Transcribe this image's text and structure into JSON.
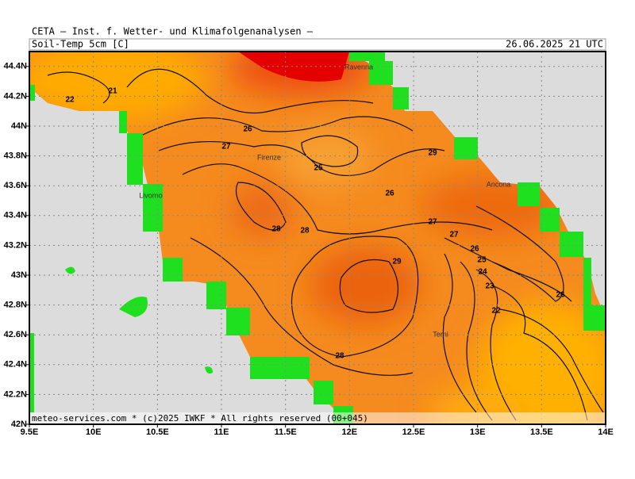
{
  "header": {
    "institute": "CETA — Inst. f. Wetter- und Klimafolgenanalysen —",
    "field": "Soil-Temp 5cm [C]",
    "valid": "26.06.2025 21 UTC"
  },
  "map": {
    "xlim": [
      9.5,
      14
    ],
    "ylim": [
      42,
      44.5
    ],
    "xticks": [
      {
        "value": 9.5,
        "label": "9.5E"
      },
      {
        "value": 10,
        "label": "10E"
      },
      {
        "value": 10.5,
        "label": "10.5E"
      },
      {
        "value": 11,
        "label": "11E"
      },
      {
        "value": 11.5,
        "label": "11.5E"
      },
      {
        "value": 12,
        "label": "12E"
      },
      {
        "value": 12.5,
        "label": "12.5E"
      },
      {
        "value": 13,
        "label": "13E"
      },
      {
        "value": 13.5,
        "label": "13.5E"
      },
      {
        "value": 14,
        "label": "14E"
      }
    ],
    "yticks": [
      {
        "value": 42,
        "label": "42N"
      },
      {
        "value": 42.2,
        "label": "42.2N"
      },
      {
        "value": 42.4,
        "label": "42.4N"
      },
      {
        "value": 42.6,
        "label": "42.6N"
      },
      {
        "value": 42.8,
        "label": "42.8N"
      },
      {
        "value": 43,
        "label": "43N"
      },
      {
        "value": 43.2,
        "label": "43.2N"
      },
      {
        "value": 43.4,
        "label": "43.4N"
      },
      {
        "value": 43.6,
        "label": "43.6N"
      },
      {
        "value": 43.8,
        "label": "43.8N"
      },
      {
        "value": 44,
        "label": "44N"
      },
      {
        "value": 44.2,
        "label": "44.2N"
      },
      {
        "value": 44.4,
        "label": "44.4N"
      }
    ],
    "grid": true,
    "contour_labels": [
      22,
      21,
      26,
      27,
      25,
      26,
      29,
      28,
      28,
      27,
      27,
      29,
      26,
      25,
      24,
      23,
      22,
      28,
      26
    ],
    "cities": [
      "Ravenna",
      "Firenze",
      "Livorno",
      "Ancona",
      "Terni"
    ]
  },
  "footer": "meteo-services.com * (c)2025 IWKF * All rights reserved (00+045)"
}
